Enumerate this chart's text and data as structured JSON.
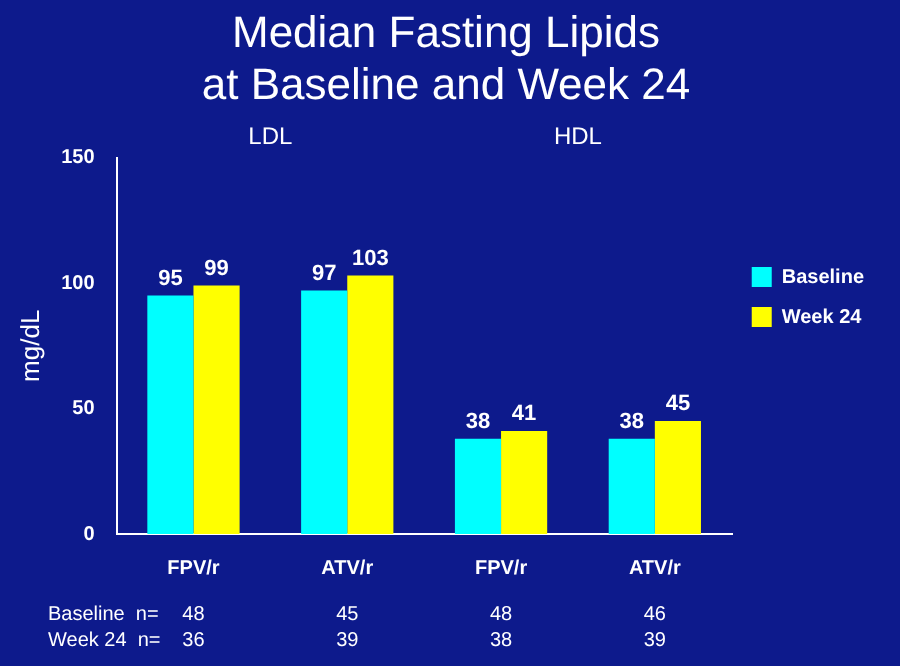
{
  "chart_data": {
    "type": "bar",
    "title": "Median Fasting Lipids\nat Baseline and Week 24",
    "ylabel": "mg/dL",
    "categories": [
      "FPV/r",
      "ATV/r",
      "FPV/r",
      "ATV/r"
    ],
    "series": [
      {
        "name": "Baseline",
        "color": "#00ffff",
        "values": [
          95,
          97,
          38,
          38
        ]
      },
      {
        "name": "Week 24",
        "color": "#ffff00",
        "values": [
          99,
          103,
          41,
          45
        ]
      }
    ],
    "ylim": [
      0,
      150
    ],
    "yticks": [
      0,
      50,
      100,
      150
    ],
    "grid": false,
    "legend": "right",
    "data_labels": true,
    "annotations": [
      "LDL",
      "HDL",
      "Baseline  n=",
      "48",
      "45",
      "48",
      "46",
      "Week 24  n=",
      "36",
      "39",
      "38",
      "39"
    ]
  }
}
